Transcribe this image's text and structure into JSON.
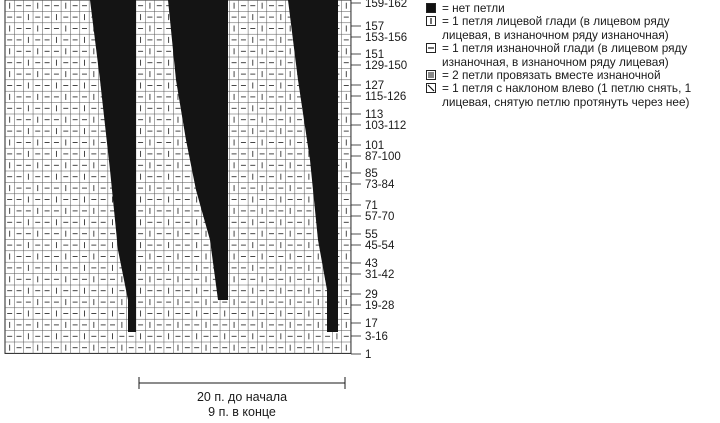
{
  "rows": [
    {
      "start": 159,
      "end": 162,
      "label": "159-162"
    },
    {
      "start": 157,
      "end": 157,
      "label": "157"
    },
    {
      "start": 153,
      "end": 156,
      "label": "153-156"
    },
    {
      "start": 151,
      "end": 151,
      "label": "151"
    },
    {
      "start": 129,
      "end": 150,
      "label": "129-150"
    },
    {
      "start": 127,
      "end": 127,
      "label": "127"
    },
    {
      "start": 115,
      "end": 126,
      "label": "115-126"
    },
    {
      "start": 113,
      "end": 113,
      "label": "113"
    },
    {
      "start": 103,
      "end": 112,
      "label": "103-112"
    },
    {
      "start": 101,
      "end": 101,
      "label": "101"
    },
    {
      "start": 87,
      "end": 100,
      "label": "87-100"
    },
    {
      "start": 85,
      "end": 85,
      "label": "85"
    },
    {
      "start": 73,
      "end": 84,
      "label": "73-84"
    },
    {
      "start": 71,
      "end": 71,
      "label": "71"
    },
    {
      "start": 57,
      "end": 70,
      "label": "57-70"
    },
    {
      "start": 55,
      "end": 55,
      "label": "55"
    },
    {
      "start": 45,
      "end": 54,
      "label": "45-54"
    },
    {
      "start": 43,
      "end": 43,
      "label": "43"
    },
    {
      "start": 31,
      "end": 42,
      "label": "31-42"
    },
    {
      "start": 29,
      "end": 29,
      "label": "29"
    },
    {
      "start": 19,
      "end": 28,
      "label": "19-28"
    },
    {
      "start": 17,
      "end": 17,
      "label": "17"
    },
    {
      "start": 3,
      "end": 16,
      "label": "3-16"
    },
    {
      "start": 1,
      "end": 1,
      "label": "1"
    }
  ],
  "caption": {
    "line1": "20 п. до начала",
    "line2": "9 п. в конце"
  },
  "legend": [
    {
      "symbol": "no-stitch",
      "text": "= нет петли"
    },
    {
      "symbol": "knit",
      "text": "= 1 петля лицевой глади (в лицевом ряду лицевая, в изнаночном ряду изнаночная)"
    },
    {
      "symbol": "purl",
      "text": "= 1 петля изнаночной глади (в лицевом ряду изнаночная, в изнаночном ряду лицевая)"
    },
    {
      "symbol": "p2tog",
      "text": "= 2 петли провязать вместе изнаночной"
    },
    {
      "symbol": "left-slant",
      "text": "= 1 петля с наклоном влево (1 петлю снять, 1 лицевая, снятую петлю протянуть через нее)"
    }
  ]
}
